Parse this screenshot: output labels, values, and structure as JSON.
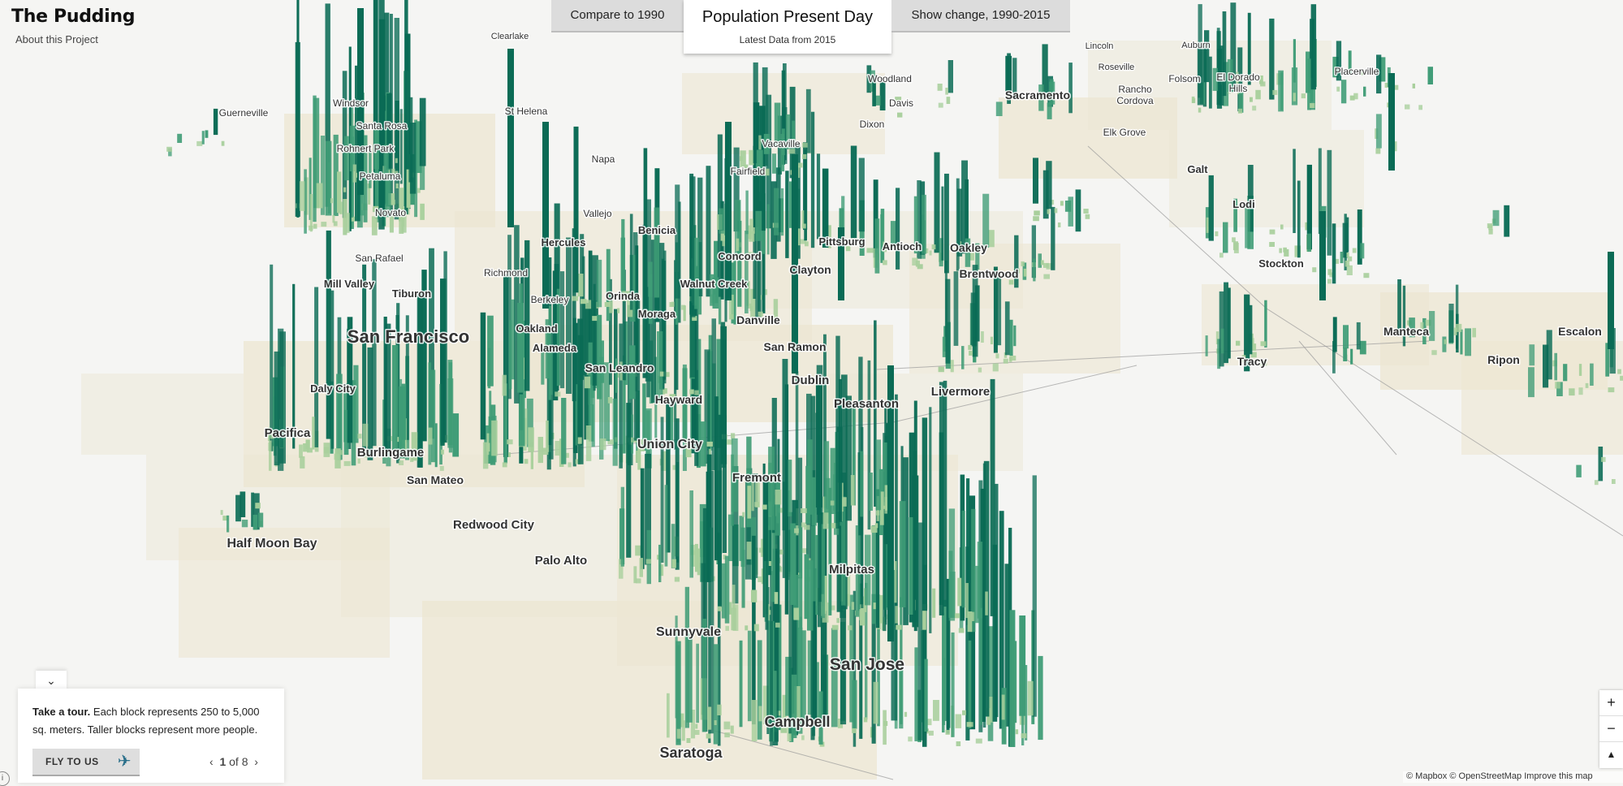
{
  "brand": {
    "logo": "The Pudding",
    "about_link": "About this Project"
  },
  "modes": {
    "compare": "Compare to 1990",
    "active_title": "Population Present Day",
    "active_subtitle": "Latest Data from 2015",
    "change": "Show change, 1990-2015"
  },
  "tour": {
    "lead": "Take a tour.",
    "text": " Each block represents 250 to 5,000 sq. meters. Taller blocks represent more people.",
    "fly_button": "FLY TO US",
    "fly_icon": "airplane-icon",
    "page_current": "1",
    "page_sep": " of ",
    "page_total": "8",
    "collapse_icon": "chevron-down-icon"
  },
  "zoom": {
    "in": "+",
    "out": "−",
    "compass": "▲"
  },
  "attribution": "© Mapbox © OpenStreetMap Improve this map",
  "info_icon": "i",
  "colors": {
    "dark": "#0a6b55",
    "mid": "#3f9c76",
    "light": "#a8cf9c",
    "land": "#ece6d2"
  },
  "labels": [
    {
      "name": "Guerneville",
      "size": 12
    },
    {
      "name": "Windsor",
      "size": 12
    },
    {
      "name": "Santa Rosa",
      "size": 12
    },
    {
      "name": "Rohnert Park",
      "size": 12
    },
    {
      "name": "Petaluma",
      "size": 12
    },
    {
      "name": "Novato",
      "size": 12
    },
    {
      "name": "San Rafael",
      "size": 12
    },
    {
      "name": "Mill Valley",
      "size": 13
    },
    {
      "name": "Tiburon",
      "size": 13
    },
    {
      "name": "San Francisco",
      "size": 22
    },
    {
      "name": "Daly City",
      "size": 13
    },
    {
      "name": "Pacifica",
      "size": 15
    },
    {
      "name": "Burlingame",
      "size": 15
    },
    {
      "name": "San Mateo",
      "size": 14
    },
    {
      "name": "Half Moon Bay",
      "size": 16
    },
    {
      "name": "Redwood City",
      "size": 15
    },
    {
      "name": "Palo Alto",
      "size": 15
    },
    {
      "name": "St Helena",
      "size": 12
    },
    {
      "name": "Napa",
      "size": 12
    },
    {
      "name": "Vallejo",
      "size": 12
    },
    {
      "name": "Benicia",
      "size": 13
    },
    {
      "name": "Hercules",
      "size": 13
    },
    {
      "name": "Richmond",
      "size": 12
    },
    {
      "name": "Berkeley",
      "size": 12
    },
    {
      "name": "Oakland",
      "size": 13
    },
    {
      "name": "Alameda",
      "size": 13
    },
    {
      "name": "Orinda",
      "size": 13
    },
    {
      "name": "Moraga",
      "size": 13
    },
    {
      "name": "Walnut Creek",
      "size": 13
    },
    {
      "name": "Concord",
      "size": 13
    },
    {
      "name": "Fairfield",
      "size": 12
    },
    {
      "name": "Vacaville",
      "size": 12
    },
    {
      "name": "Pittsburg",
      "size": 13
    },
    {
      "name": "Antioch",
      "size": 13
    },
    {
      "name": "Oakley",
      "size": 14
    },
    {
      "name": "Brentwood",
      "size": 14
    },
    {
      "name": "Clayton",
      "size": 14
    },
    {
      "name": "Danville",
      "size": 14
    },
    {
      "name": "San Ramon",
      "size": 14
    },
    {
      "name": "San Leandro",
      "size": 14
    },
    {
      "name": "Dublin",
      "size": 15
    },
    {
      "name": "Hayward",
      "size": 14
    },
    {
      "name": "Pleasanton",
      "size": 15
    },
    {
      "name": "Livermore",
      "size": 15
    },
    {
      "name": "Union City",
      "size": 16
    },
    {
      "name": "Fremont",
      "size": 15
    },
    {
      "name": "Milpitas",
      "size": 15
    },
    {
      "name": "Sunnyvale",
      "size": 16
    },
    {
      "name": "San Jose",
      "size": 21
    },
    {
      "name": "Campbell",
      "size": 18
    },
    {
      "name": "Saratoga",
      "size": 18
    },
    {
      "name": "Clearlake",
      "size": 11
    },
    {
      "name": "Woodland",
      "size": 12
    },
    {
      "name": "Davis",
      "size": 12
    },
    {
      "name": "Dixon",
      "size": 12
    },
    {
      "name": "Lincoln",
      "size": 11
    },
    {
      "name": "Auburn",
      "size": 11
    },
    {
      "name": "Roseville",
      "size": 11
    },
    {
      "name": "Sacramento",
      "size": 14
    },
    {
      "name": "Rancho",
      "size": 12
    },
    {
      "name": "Cordova",
      "size": 12
    },
    {
      "name": "Folsom",
      "size": 12
    },
    {
      "name": "El Dorado",
      "size": 12
    },
    {
      "name": "Hills",
      "size": 12
    },
    {
      "name": "Placerville",
      "size": 12
    },
    {
      "name": "Elk Grove",
      "size": 12
    },
    {
      "name": "Galt",
      "size": 13
    },
    {
      "name": "Lodi",
      "size": 13
    },
    {
      "name": "Stockton",
      "size": 13
    },
    {
      "name": "Manteca",
      "size": 14
    },
    {
      "name": "Tracy",
      "size": 14
    },
    {
      "name": "Escalon",
      "size": 14
    },
    {
      "name": "Ripon",
      "size": 14
    }
  ]
}
